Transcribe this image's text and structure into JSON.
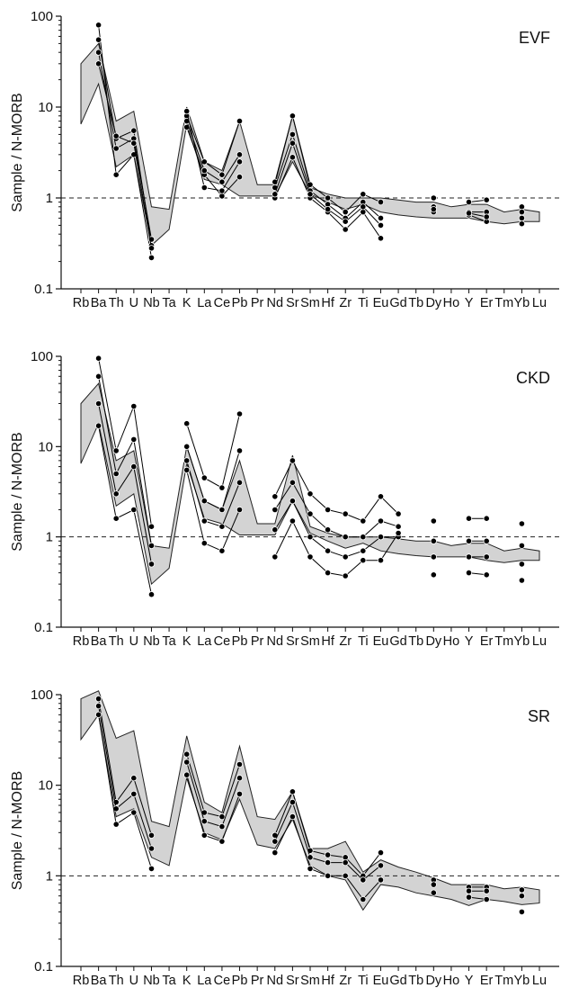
{
  "chart_data": [
    {
      "type": "line",
      "title": "EVF",
      "ylabel": "Sample / N-MORB",
      "xlabel": "",
      "yscale": "log",
      "ylim": [
        0.1,
        100
      ],
      "yticks": [
        "0.1",
        "1",
        "10",
        "100"
      ],
      "categories": [
        "Rb",
        "Ba",
        "Th",
        "U",
        "Nb",
        "Ta",
        "K",
        "La",
        "Ce",
        "Pb",
        "Pr",
        "Nd",
        "Sr",
        "Sm",
        "Hf",
        "Zr",
        "Ti",
        "Eu",
        "Gd",
        "Tb",
        "Dy",
        "Ho",
        "Y",
        "Er",
        "Tm",
        "Yb",
        "Lu"
      ],
      "reference_line": 1,
      "envelope_upper": [
        30,
        50,
        7,
        9,
        0.8,
        0.75,
        10,
        2.5,
        2.0,
        7,
        1.4,
        1.4,
        8,
        1.3,
        1.1,
        1.0,
        1.0,
        1.0,
        0.95,
        0.9,
        0.9,
        0.8,
        0.85,
        0.85,
        0.7,
        0.75,
        0.7
      ],
      "envelope_lower": [
        6.5,
        18,
        2.2,
        3.0,
        0.3,
        0.45,
        6.5,
        1.6,
        1.4,
        1.05,
        1.05,
        1.05,
        2.5,
        1.1,
        0.9,
        0.75,
        0.85,
        0.7,
        0.65,
        0.62,
        0.6,
        0.6,
        0.6,
        0.55,
        0.52,
        0.55,
        0.55
      ],
      "series": [
        {
          "values": [
            null,
            80,
            1.8,
            3.0,
            0.22,
            null,
            6.0,
            1.8,
            1.05,
            1.7,
            null,
            1.0,
            2.8,
            1.0,
            0.7,
            0.45,
            0.7,
            0.36,
            null,
            null,
            0.7,
            null,
            0.65,
            0.55,
            null,
            0.52,
            null
          ]
        },
        {
          "values": [
            null,
            55,
            4.5,
            5.5,
            0.3,
            null,
            8.0,
            2.5,
            1.8,
            7.0,
            null,
            1.5,
            8.0,
            1.4,
            1.0,
            0.7,
            1.1,
            0.9,
            null,
            null,
            1.0,
            null,
            0.9,
            0.95,
            null,
            0.8,
            null
          ]
        },
        {
          "values": [
            null,
            40,
            3.5,
            4.5,
            0.35,
            null,
            7.0,
            2.0,
            1.5,
            3.0,
            null,
            1.3,
            5.0,
            1.2,
            0.85,
            0.6,
            0.9,
            0.6,
            null,
            null,
            0.8,
            null,
            0.7,
            0.7,
            null,
            0.6,
            null
          ]
        },
        {
          "values": [
            null,
            30,
            4.8,
            4.0,
            0.28,
            null,
            9.0,
            1.3,
            1.2,
            2.5,
            null,
            1.1,
            4.0,
            1.1,
            0.75,
            0.55,
            0.8,
            0.5,
            null,
            null,
            0.75,
            null,
            0.68,
            0.62,
            null,
            0.7,
            null
          ]
        }
      ]
    },
    {
      "type": "line",
      "title": "CKD",
      "ylabel": "Sample / N-MORB",
      "xlabel": "",
      "yscale": "log",
      "ylim": [
        0.1,
        100
      ],
      "yticks": [
        "0.1",
        "1",
        "10",
        "100"
      ],
      "categories": [
        "Rb",
        "Ba",
        "Th",
        "U",
        "Nb",
        "Ta",
        "K",
        "La",
        "Ce",
        "Pb",
        "Pr",
        "Nd",
        "Sr",
        "Sm",
        "Hf",
        "Zr",
        "Ti",
        "Eu",
        "Gd",
        "Tb",
        "Dy",
        "Ho",
        "Y",
        "Er",
        "Tm",
        "Yb",
        "Lu"
      ],
      "reference_line": 1,
      "envelope_upper": [
        30,
        50,
        7,
        9,
        0.8,
        0.75,
        10,
        2.5,
        2.0,
        7,
        1.4,
        1.4,
        8,
        1.3,
        1.1,
        1.0,
        1.0,
        1.0,
        0.95,
        0.9,
        0.9,
        0.8,
        0.85,
        0.85,
        0.7,
        0.75,
        0.7
      ],
      "envelope_lower": [
        6.5,
        18,
        2.2,
        3.0,
        0.3,
        0.45,
        6.5,
        1.6,
        1.4,
        1.05,
        1.05,
        1.05,
        2.5,
        1.1,
        0.9,
        0.75,
        0.85,
        0.7,
        0.65,
        0.62,
        0.6,
        0.6,
        0.6,
        0.55,
        0.52,
        0.55,
        0.55
      ],
      "series": [
        {
          "values": [
            null,
            95,
            9.0,
            28,
            1.3,
            null,
            18,
            4.5,
            3.5,
            23,
            null,
            2.8,
            7.0,
            3.0,
            2.0,
            1.8,
            1.5,
            2.8,
            1.8,
            null,
            1.5,
            null,
            1.6,
            1.6,
            null,
            1.4,
            null
          ]
        },
        {
          "values": [
            null,
            60,
            5.0,
            12,
            0.8,
            null,
            10,
            2.5,
            2.0,
            9.0,
            null,
            2.0,
            4.0,
            1.8,
            1.2,
            1.0,
            1.0,
            1.5,
            1.3,
            null,
            0.9,
            null,
            0.9,
            0.9,
            null,
            0.8,
            null
          ]
        },
        {
          "values": [
            null,
            30,
            3.0,
            6.0,
            0.5,
            null,
            7.0,
            1.5,
            1.3,
            4.0,
            null,
            1.2,
            2.5,
            1.0,
            0.7,
            0.6,
            0.7,
            1.0,
            1.0,
            null,
            0.6,
            null,
            0.6,
            0.6,
            null,
            0.5,
            null
          ]
        },
        {
          "values": [
            null,
            17,
            1.6,
            2.0,
            0.23,
            null,
            5.5,
            0.85,
            0.7,
            2.0,
            null,
            0.6,
            1.5,
            0.6,
            0.4,
            0.37,
            0.55,
            0.55,
            1.1,
            null,
            0.38,
            null,
            0.4,
            0.38,
            null,
            0.33,
            null
          ]
        }
      ]
    },
    {
      "type": "line",
      "title": "SR",
      "ylabel": "Sample / N-MORB",
      "xlabel": "",
      "yscale": "log",
      "ylim": [
        0.1,
        100
      ],
      "yticks": [
        "0.1",
        "1",
        "10",
        "100"
      ],
      "categories": [
        "Rb",
        "Ba",
        "Th",
        "U",
        "Nb",
        "Ta",
        "K",
        "La",
        "Ce",
        "Pb",
        "Pr",
        "Nd",
        "Sr",
        "Sm",
        "Hf",
        "Zr",
        "Ti",
        "Eu",
        "Gd",
        "Tb",
        "Dy",
        "Ho",
        "Y",
        "Er",
        "Tm",
        "Yb",
        "Lu"
      ],
      "reference_line": 1,
      "envelope_upper": [
        90,
        110,
        33,
        40,
        4.0,
        3.5,
        35,
        6.5,
        5.0,
        27,
        4.5,
        4.2,
        8.5,
        2.0,
        2.0,
        2.4,
        1.1,
        1.5,
        1.25,
        1.1,
        0.95,
        0.8,
        0.8,
        0.8,
        0.72,
        0.75,
        0.7
      ],
      "envelope_lower": [
        32,
        60,
        4.5,
        5.5,
        1.6,
        1.3,
        12,
        3.0,
        2.5,
        7.0,
        2.2,
        2.0,
        4.2,
        1.3,
        1.0,
        0.9,
        0.42,
        0.8,
        0.75,
        0.65,
        0.6,
        0.55,
        0.47,
        0.55,
        0.52,
        0.48,
        0.5
      ],
      "series": [
        {
          "values": [
            null,
            90,
            6.5,
            12,
            2.8,
            null,
            22,
            5.0,
            4.5,
            17,
            null,
            2.8,
            8.5,
            1.9,
            1.7,
            1.6,
            1.0,
            1.8,
            null,
            null,
            0.9,
            null,
            0.75,
            0.75,
            null,
            0.7,
            null
          ]
        },
        {
          "values": [
            null,
            75,
            5.5,
            8.0,
            2.0,
            null,
            18,
            4.0,
            3.5,
            12,
            null,
            2.4,
            6.5,
            1.6,
            1.4,
            1.4,
            0.9,
            1.3,
            null,
            null,
            0.8,
            null,
            0.68,
            0.68,
            null,
            0.6,
            null
          ]
        },
        {
          "values": [
            null,
            60,
            3.7,
            5.0,
            1.2,
            null,
            13,
            2.8,
            2.4,
            8.0,
            null,
            1.8,
            4.5,
            1.2,
            1.0,
            1.0,
            0.55,
            0.9,
            null,
            null,
            0.65,
            null,
            0.58,
            0.55,
            null,
            0.4,
            null
          ]
        }
      ]
    }
  ]
}
